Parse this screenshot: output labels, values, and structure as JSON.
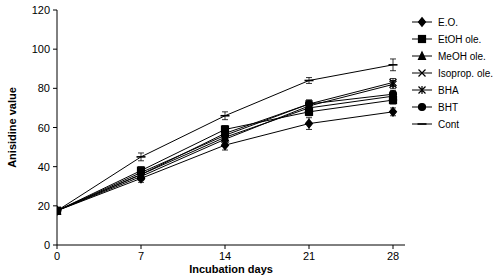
{
  "chart_data": {
    "type": "line",
    "x_label": "Incubation days",
    "y_label": "Anisidine value",
    "x": [
      0,
      7,
      14,
      21,
      28
    ],
    "xlim": [
      0,
      29
    ],
    "xticks": [
      0,
      7,
      14,
      21,
      28
    ],
    "ylim": [
      0,
      120
    ],
    "yticks": [
      0,
      20,
      40,
      60,
      80,
      100,
      120
    ],
    "grid": false,
    "legend": "right",
    "series": [
      {
        "name": "E.O.",
        "color": "#000000",
        "marker": "diamond",
        "values": [
          17.5,
          34,
          51,
          62,
          68
        ],
        "errors": [
          0.5,
          2,
          2.5,
          3,
          2
        ]
      },
      {
        "name": "EtOH ole.",
        "color": "#000000",
        "marker": "square",
        "values": [
          17.5,
          38,
          59,
          68,
          74
        ],
        "errors": [
          0.5,
          2,
          2,
          2,
          2
        ]
      },
      {
        "name": "MeOH ole.",
        "color": "#000000",
        "marker": "triangle",
        "values": [
          17.5,
          36,
          55,
          70,
          76
        ],
        "errors": [
          0.5,
          2,
          2,
          2,
          2
        ]
      },
      {
        "name": "Isoprop. ole.",
        "color": "#000000",
        "marker": "x",
        "values": [
          17.5,
          36,
          57,
          72,
          83
        ],
        "errors": [
          0.5,
          2,
          2,
          2,
          2
        ]
      },
      {
        "name": "BHA",
        "color": "#000000",
        "marker": "star",
        "values": [
          17.5,
          35,
          54,
          71,
          82
        ],
        "errors": [
          0.5,
          2,
          2,
          2,
          2
        ]
      },
      {
        "name": "BHT",
        "color": "#000000",
        "marker": "circle",
        "values": [
          17.5,
          37,
          56,
          72,
          77
        ],
        "errors": [
          0.5,
          2,
          2,
          2,
          2
        ]
      },
      {
        "name": "Cont",
        "color": "#000000",
        "marker": "dash",
        "values": [
          17.5,
          45,
          66,
          84,
          92
        ],
        "errors": [
          0.5,
          2,
          2,
          1.5,
          3
        ]
      }
    ]
  }
}
